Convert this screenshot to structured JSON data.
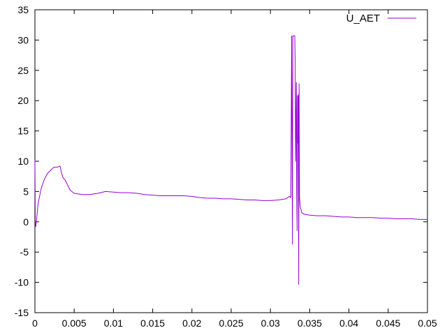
{
  "chart_data": {
    "type": "line",
    "title": "",
    "xlabel": "",
    "ylabel": "",
    "xlim": [
      0,
      0.05
    ],
    "ylim": [
      -15,
      35
    ],
    "x_ticks": [
      "0",
      "0.005",
      "0.01",
      "0.015",
      "0.02",
      "0.025",
      "0.03",
      "0.035",
      "0.04",
      "0.045",
      "0.05"
    ],
    "x_tick_values": [
      0,
      0.005,
      0.01,
      0.015,
      0.02,
      0.025,
      0.03,
      0.035,
      0.04,
      0.045,
      0.05
    ],
    "y_ticks": [
      "-15",
      "-10",
      "-5",
      "0",
      "5",
      "10",
      "15",
      "20",
      "25",
      "30",
      "35"
    ],
    "y_tick_values": [
      -15,
      -10,
      -5,
      0,
      5,
      10,
      15,
      20,
      25,
      30,
      35
    ],
    "grid": false,
    "legend_position": "top-right",
    "series": [
      {
        "name": "U_AET",
        "color": "#9400d3",
        "x": [
          0,
          5e-05,
          0.0001,
          0.0002,
          0.0004,
          0.0008,
          0.0012,
          0.0016,
          0.002,
          0.0024,
          0.0028,
          0.0032,
          0.0034,
          0.0036,
          0.0038,
          0.004,
          0.0045,
          0.005,
          0.006,
          0.007,
          0.008,
          0.009,
          0.01,
          0.011,
          0.012,
          0.013,
          0.014,
          0.015,
          0.016,
          0.017,
          0.018,
          0.019,
          0.02,
          0.021,
          0.022,
          0.023,
          0.024,
          0.025,
          0.026,
          0.027,
          0.028,
          0.029,
          0.03,
          0.031,
          0.032,
          0.0324,
          0.0326,
          0.0327,
          0.0328,
          0.03285,
          0.033,
          0.0331,
          0.03315,
          0.0332,
          0.0333,
          0.03335,
          0.0334,
          0.03345,
          0.0335,
          0.03355,
          0.0336,
          0.03365,
          0.0337,
          0.0338,
          0.034,
          0.0342,
          0.0345,
          0.035,
          0.036,
          0.037,
          0.038,
          0.039,
          0.04,
          0.041,
          0.042,
          0.043,
          0.044,
          0.045,
          0.046,
          0.047,
          0.048,
          0.049,
          0.05
        ],
        "y": [
          10.2,
          0.0,
          -0.8,
          0.2,
          3.0,
          5.5,
          7.0,
          8.0,
          8.5,
          9.0,
          9.0,
          9.2,
          8.0,
          7.2,
          7.0,
          6.5,
          5.2,
          4.7,
          4.5,
          4.5,
          4.7,
          5.0,
          4.9,
          4.8,
          4.8,
          4.7,
          4.5,
          4.4,
          4.3,
          4.3,
          4.3,
          4.3,
          4.2,
          4.0,
          3.9,
          3.9,
          3.8,
          3.8,
          3.7,
          3.6,
          3.6,
          3.5,
          3.5,
          3.6,
          3.8,
          4.2,
          4.0,
          30.7,
          -3.7,
          30.7,
          30.7,
          30.7,
          26.0,
          10.0,
          23.0,
          5.0,
          -1.5,
          20.8,
          13.0,
          21.0,
          -10.3,
          22.8,
          4.0,
          2.5,
          1.5,
          1.3,
          1.2,
          1.1,
          1.0,
          1.0,
          0.9,
          0.8,
          0.8,
          0.7,
          0.7,
          0.7,
          0.6,
          0.6,
          0.5,
          0.5,
          0.5,
          0.4,
          0.4
        ]
      }
    ]
  }
}
